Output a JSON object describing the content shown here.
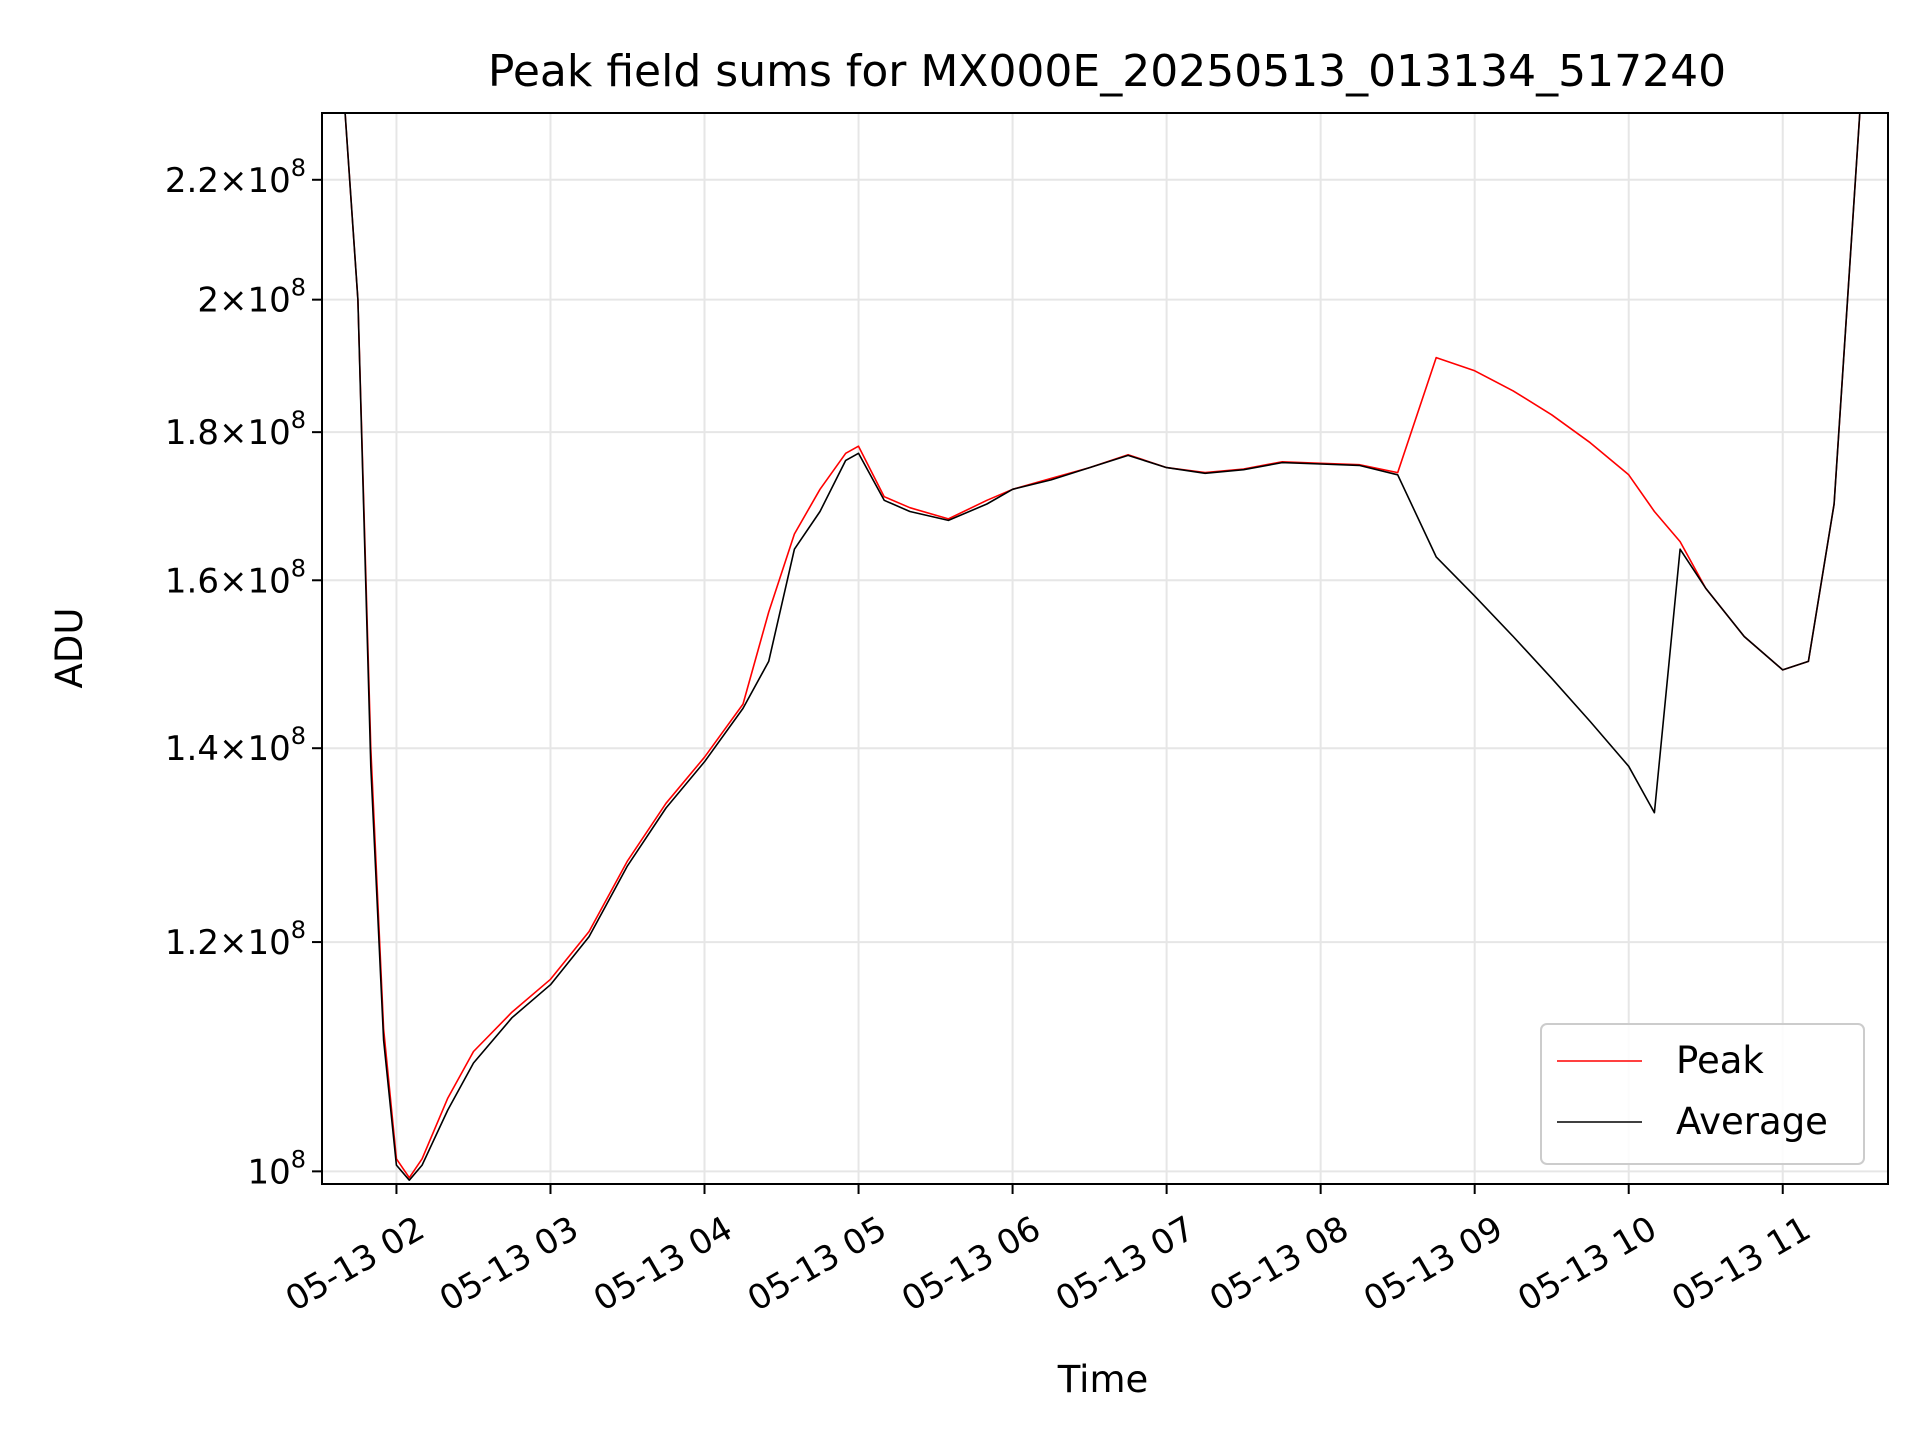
{
  "chart_data": {
    "type": "line",
    "title": "Peak field sums for MX000E_20250513_013134_517240",
    "xlabel": "Time",
    "ylabel": "ADU",
    "y_scale": "log",
    "ylim": [
      99000000,
      232000000
    ],
    "xlim": [
      "2025-05-13 01:31",
      "2025-05-13 11:41"
    ],
    "x_ticks": [
      {
        "x": "2025-05-13 02:00",
        "label": "05-13 02"
      },
      {
        "x": "2025-05-13 03:00",
        "label": "05-13 03"
      },
      {
        "x": "2025-05-13 04:00",
        "label": "05-13 04"
      },
      {
        "x": "2025-05-13 05:00",
        "label": "05-13 05"
      },
      {
        "x": "2025-05-13 06:00",
        "label": "05-13 06"
      },
      {
        "x": "2025-05-13 07:00",
        "label": "05-13 07"
      },
      {
        "x": "2025-05-13 08:00",
        "label": "05-13 08"
      },
      {
        "x": "2025-05-13 09:00",
        "label": "05-13 09"
      },
      {
        "x": "2025-05-13 10:00",
        "label": "05-13 10"
      },
      {
        "x": "2025-05-13 11:00",
        "label": "05-13 11"
      }
    ],
    "y_ticks": [
      {
        "y": 100000000,
        "mantissa": "",
        "exp": "8"
      },
      {
        "y": 120000000,
        "mantissa": "1.2",
        "exp": "8"
      },
      {
        "y": 140000000,
        "mantissa": "1.4",
        "exp": "8"
      },
      {
        "y": 160000000,
        "mantissa": "1.6",
        "exp": "8"
      },
      {
        "y": 180000000,
        "mantissa": "1.8",
        "exp": "8"
      },
      {
        "y": 200000000,
        "mantissa": "2",
        "exp": "8"
      },
      {
        "y": 220000000,
        "mantissa": "2.2",
        "exp": "8"
      }
    ],
    "grid": true,
    "legend_position": "bottom-right",
    "series": [
      {
        "name": "Peak",
        "color": "#ff0000",
        "x": [
          "2025-05-13 01:31",
          "2025-05-13 01:40",
          "2025-05-13 01:45",
          "2025-05-13 01:50",
          "2025-05-13 01:55",
          "2025-05-13 02:00",
          "2025-05-13 02:05",
          "2025-05-13 02:10",
          "2025-05-13 02:20",
          "2025-05-13 02:30",
          "2025-05-13 02:45",
          "2025-05-13 03:00",
          "2025-05-13 03:15",
          "2025-05-13 03:30",
          "2025-05-13 03:45",
          "2025-05-13 04:00",
          "2025-05-13 04:15",
          "2025-05-13 04:25",
          "2025-05-13 04:35",
          "2025-05-13 04:45",
          "2025-05-13 04:55",
          "2025-05-13 05:00",
          "2025-05-13 05:10",
          "2025-05-13 05:20",
          "2025-05-13 05:35",
          "2025-05-13 05:50",
          "2025-05-13 06:00",
          "2025-05-13 06:15",
          "2025-05-13 06:30",
          "2025-05-13 06:45",
          "2025-05-13 07:00",
          "2025-05-13 07:15",
          "2025-05-13 07:30",
          "2025-05-13 07:45",
          "2025-05-13 08:00",
          "2025-05-13 08:15",
          "2025-05-13 08:30",
          "2025-05-13 08:45",
          "2025-05-13 09:00",
          "2025-05-13 09:15",
          "2025-05-13 09:30",
          "2025-05-13 09:45",
          "2025-05-13 10:00",
          "2025-05-13 10:10",
          "2025-05-13 10:20",
          "2025-05-13 10:30",
          "2025-05-13 10:45",
          "2025-05-13 11:00",
          "2025-05-13 11:10",
          "2025-05-13 11:20",
          "2025-05-13 11:30",
          "2025-05-13 11:41"
        ],
        "y": [
          232000000,
          232000000,
          200000000,
          140000000,
          112000000,
          101000000,
          99500000,
          101000000,
          106000000,
          110000000,
          113500000,
          116500000,
          121000000,
          128000000,
          134000000,
          139000000,
          145000000,
          156000000,
          166000000,
          172000000,
          177000000,
          178000000,
          171000000,
          169500000,
          168000000,
          170500000,
          172000000,
          173500000,
          175000000,
          176800000,
          175000000,
          174300000,
          174800000,
          175800000,
          175600000,
          175400000,
          174300000,
          191000000,
          189000000,
          186000000,
          182500000,
          178500000,
          174000000,
          169000000,
          165000000,
          159000000,
          153000000,
          149000000,
          150000000,
          170000000,
          232000000,
          232000000
        ]
      },
      {
        "name": "Average",
        "color": "#000000",
        "x": [
          "2025-05-13 01:31",
          "2025-05-13 01:40",
          "2025-05-13 01:45",
          "2025-05-13 01:50",
          "2025-05-13 01:55",
          "2025-05-13 02:00",
          "2025-05-13 02:05",
          "2025-05-13 02:10",
          "2025-05-13 02:20",
          "2025-05-13 02:30",
          "2025-05-13 02:45",
          "2025-05-13 03:00",
          "2025-05-13 03:15",
          "2025-05-13 03:30",
          "2025-05-13 03:45",
          "2025-05-13 04:00",
          "2025-05-13 04:15",
          "2025-05-13 04:25",
          "2025-05-13 04:35",
          "2025-05-13 04:45",
          "2025-05-13 04:55",
          "2025-05-13 05:00",
          "2025-05-13 05:10",
          "2025-05-13 05:20",
          "2025-05-13 05:35",
          "2025-05-13 05:50",
          "2025-05-13 06:00",
          "2025-05-13 06:15",
          "2025-05-13 06:30",
          "2025-05-13 06:45",
          "2025-05-13 07:00",
          "2025-05-13 07:15",
          "2025-05-13 07:30",
          "2025-05-13 07:45",
          "2025-05-13 08:00",
          "2025-05-13 08:15",
          "2025-05-13 08:30",
          "2025-05-13 08:45",
          "2025-05-13 09:00",
          "2025-05-13 09:15",
          "2025-05-13 09:30",
          "2025-05-13 09:45",
          "2025-05-13 10:00",
          "2025-05-13 10:10",
          "2025-05-13 10:20",
          "2025-05-13 10:30",
          "2025-05-13 10:45",
          "2025-05-13 11:00",
          "2025-05-13 11:10",
          "2025-05-13 11:20",
          "2025-05-13 11:30",
          "2025-05-13 11:41"
        ],
        "y": [
          232000000,
          232000000,
          200000000,
          138000000,
          111000000,
          100500000,
          99300000,
          100500000,
          105000000,
          109000000,
          113000000,
          116000000,
          120500000,
          127500000,
          133500000,
          138500000,
          144500000,
          150000000,
          164000000,
          169000000,
          176000000,
          177000000,
          170500000,
          169000000,
          167800000,
          170000000,
          172000000,
          173300000,
          175000000,
          176700000,
          175000000,
          174200000,
          174700000,
          175700000,
          175500000,
          175300000,
          174000000,
          163000000,
          158000000,
          153000000,
          148000000,
          143000000,
          138000000,
          133000000,
          164000000,
          159000000,
          153000000,
          149000000,
          150000000,
          170000000,
          232000000,
          232000000
        ]
      }
    ]
  }
}
